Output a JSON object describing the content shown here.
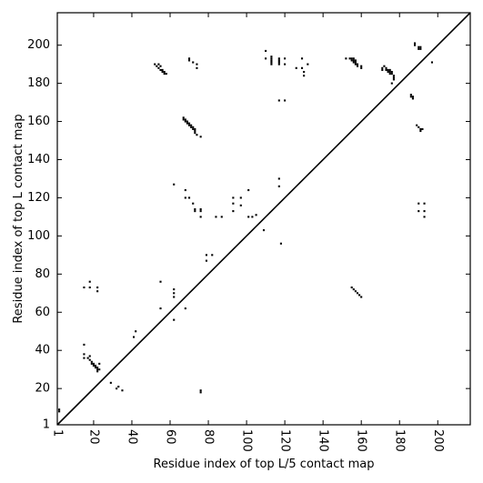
{
  "chart_data": {
    "type": "scatter",
    "title": "",
    "xlabel": "Residue index of top L/5 contact map",
    "ylabel": "Residue index of top L contact map",
    "xlim": [
      1,
      217
    ],
    "ylim": [
      1,
      217
    ],
    "xticks": [
      1,
      20,
      40,
      60,
      80,
      100,
      120,
      140,
      160,
      180,
      200
    ],
    "yticks": [
      1,
      20,
      40,
      60,
      80,
      100,
      120,
      140,
      160,
      180,
      200
    ],
    "xtick_rotation_deg": -90,
    "grid": false,
    "marker": "square",
    "marker_color": "#000000",
    "diagonal_line": true,
    "series": [
      {
        "region": "upper-left (top L contacts)",
        "points": [
          [
            2,
            8
          ],
          [
            2,
            9
          ],
          [
            15,
            43
          ],
          [
            15,
            38
          ],
          [
            15,
            36
          ],
          [
            18,
            37
          ],
          [
            18,
            35
          ],
          [
            19,
            34
          ],
          [
            19,
            33
          ],
          [
            20,
            33
          ],
          [
            20,
            32
          ],
          [
            21,
            32
          ],
          [
            21,
            31
          ],
          [
            22,
            31
          ],
          [
            22,
            30
          ],
          [
            23,
            30
          ],
          [
            23,
            33
          ],
          [
            22,
            29
          ],
          [
            17,
            36
          ],
          [
            29,
            23
          ],
          [
            32,
            20
          ],
          [
            33,
            21
          ],
          [
            35,
            19
          ],
          [
            41,
            47
          ],
          [
            42,
            50
          ],
          [
            15,
            73
          ],
          [
            18,
            73
          ],
          [
            18,
            76
          ],
          [
            22,
            73
          ],
          [
            22,
            71
          ],
          [
            55,
            76
          ],
          [
            55,
            62
          ],
          [
            62,
            72
          ],
          [
            62,
            70
          ],
          [
            62,
            68
          ],
          [
            62,
            56
          ],
          [
            76,
            18
          ],
          [
            76,
            19
          ],
          [
            68,
            62
          ],
          [
            62,
            127
          ],
          [
            68,
            124
          ],
          [
            68,
            120
          ],
          [
            70,
            120
          ],
          [
            72,
            117
          ],
          [
            73,
            114
          ],
          [
            73,
            113
          ],
          [
            76,
            114
          ],
          [
            76,
            113
          ],
          [
            76,
            110
          ],
          [
            79,
            90
          ],
          [
            79,
            87
          ],
          [
            82,
            90
          ],
          [
            84,
            110
          ],
          [
            87,
            110
          ],
          [
            93,
            120
          ],
          [
            93,
            117
          ],
          [
            93,
            113
          ],
          [
            97,
            120
          ],
          [
            97,
            116
          ],
          [
            101,
            124
          ],
          [
            101,
            110
          ],
          [
            103,
            110
          ],
          [
            105,
            111
          ],
          [
            109,
            103
          ],
          [
            118,
            96
          ],
          [
            52,
            190
          ],
          [
            53,
            189
          ],
          [
            54,
            190
          ],
          [
            54,
            188
          ],
          [
            55,
            189
          ],
          [
            55,
            187
          ],
          [
            56,
            187
          ],
          [
            56,
            186
          ],
          [
            57,
            186
          ],
          [
            57,
            185
          ],
          [
            58,
            185
          ],
          [
            67,
            162
          ],
          [
            67,
            161
          ],
          [
            68,
            161
          ],
          [
            68,
            160
          ],
          [
            69,
            160
          ],
          [
            69,
            159
          ],
          [
            70,
            159
          ],
          [
            70,
            158
          ],
          [
            71,
            158
          ],
          [
            71,
            157
          ],
          [
            72,
            157
          ],
          [
            72,
            156
          ],
          [
            73,
            156
          ],
          [
            73,
            155
          ],
          [
            73,
            154
          ],
          [
            74,
            153
          ],
          [
            76,
            152
          ],
          [
            70,
            193
          ],
          [
            70,
            192
          ],
          [
            72,
            191
          ],
          [
            74,
            190
          ],
          [
            74,
            188
          ],
          [
            110,
            197
          ],
          [
            110,
            193
          ],
          [
            113,
            194
          ],
          [
            113,
            193
          ],
          [
            113,
            192
          ],
          [
            113,
            191
          ],
          [
            113,
            190
          ],
          [
            117,
            193
          ],
          [
            117,
            192
          ],
          [
            117,
            191
          ],
          [
            117,
            190
          ],
          [
            120,
            193
          ],
          [
            120,
            190
          ],
          [
            117,
            171
          ],
          [
            120,
            171
          ],
          [
            117,
            130
          ],
          [
            117,
            126
          ],
          [
            126,
            188
          ],
          [
            129,
            193
          ],
          [
            129,
            188
          ],
          [
            130,
            186
          ],
          [
            130,
            184
          ],
          [
            132,
            190
          ],
          [
            152,
            193
          ],
          [
            154,
            193
          ],
          [
            155,
            193
          ],
          [
            155,
            192
          ],
          [
            156,
            193
          ],
          [
            156,
            192
          ],
          [
            156,
            191
          ],
          [
            157,
            192
          ],
          [
            157,
            191
          ],
          [
            157,
            190
          ],
          [
            158,
            190
          ],
          [
            158,
            189
          ],
          [
            160,
            189
          ],
          [
            160,
            188
          ],
          [
            155,
            73
          ],
          [
            156,
            72
          ],
          [
            157,
            71
          ],
          [
            158,
            70
          ],
          [
            159,
            69
          ],
          [
            160,
            68
          ],
          [
            171,
            188
          ],
          [
            171,
            187
          ],
          [
            172,
            189
          ],
          [
            173,
            188
          ],
          [
            173,
            187
          ],
          [
            174,
            187
          ],
          [
            174,
            186
          ],
          [
            175,
            187
          ],
          [
            175,
            186
          ],
          [
            175,
            185
          ],
          [
            176,
            186
          ],
          [
            176,
            185
          ],
          [
            177,
            184
          ],
          [
            177,
            183
          ],
          [
            177,
            182
          ],
          [
            176,
            180
          ],
          [
            186,
            174
          ],
          [
            186,
            173
          ],
          [
            187,
            173
          ],
          [
            187,
            172
          ],
          [
            188,
            201
          ],
          [
            188,
            200
          ],
          [
            190,
            199
          ],
          [
            190,
            198
          ],
          [
            191,
            199
          ],
          [
            191,
            198
          ],
          [
            189,
            158
          ],
          [
            190,
            157
          ],
          [
            191,
            156
          ],
          [
            191,
            155
          ],
          [
            192,
            156
          ],
          [
            197,
            191
          ],
          [
            190,
            117
          ],
          [
            190,
            113
          ],
          [
            193,
            117
          ],
          [
            193,
            113
          ],
          [
            193,
            110
          ]
        ]
      }
    ]
  }
}
